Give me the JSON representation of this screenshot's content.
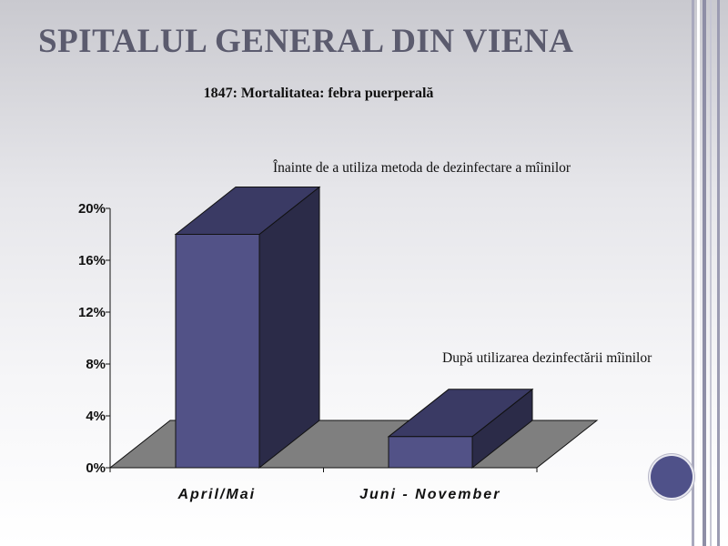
{
  "slide": {
    "title": "SPITALUL GENERAL DIN VIENA"
  },
  "colors": {
    "bar_front": "#525287",
    "bar_top": "#3a3a64",
    "bar_side": "#2b2b48",
    "floor": "#7f7f7f",
    "title": "#5b5b6e",
    "accent_circle": "#4f5189"
  },
  "chart_data": {
    "type": "bar",
    "title": "1847: Mortalitatea: febra puerperală",
    "categories": [
      "April/Mai",
      "Juni -  November"
    ],
    "values": [
      18,
      2.4
    ],
    "unit": "%",
    "ylim": [
      0,
      20
    ],
    "yticks": [
      "0%",
      "4%",
      "8%",
      "12%",
      "16%",
      "20%"
    ],
    "annotations": [
      "Înainte de a utiliza metoda de dezinfectare a mîinilor",
      "După utilizarea dezinfectării mîinilor"
    ],
    "style": "3d-column",
    "grid": false,
    "legend": "none"
  }
}
